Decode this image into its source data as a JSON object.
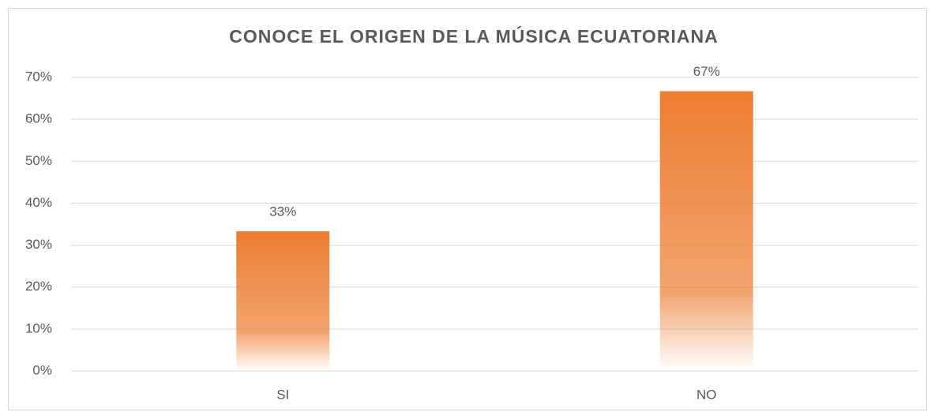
{
  "chart_data": {
    "type": "bar",
    "title": "CONOCE EL ORIGEN DE LA MÚSICA ECUATORIANA",
    "categories": [
      "SI",
      "NO"
    ],
    "values": [
      33.3,
      66.7
    ],
    "value_labels": [
      "33%",
      "67%"
    ],
    "color": "#ed7d31",
    "ylim": [
      0,
      70
    ],
    "yticks": [
      {
        "value": 0,
        "label": "0%"
      },
      {
        "value": 10,
        "label": "10%"
      },
      {
        "value": 20,
        "label": "20%"
      },
      {
        "value": 30,
        "label": "30%"
      },
      {
        "value": 40,
        "label": "40%"
      },
      {
        "value": 50,
        "label": "50%"
      },
      {
        "value": 60,
        "label": "60%"
      },
      {
        "value": 70,
        "label": "70%"
      }
    ],
    "grid": true
  }
}
